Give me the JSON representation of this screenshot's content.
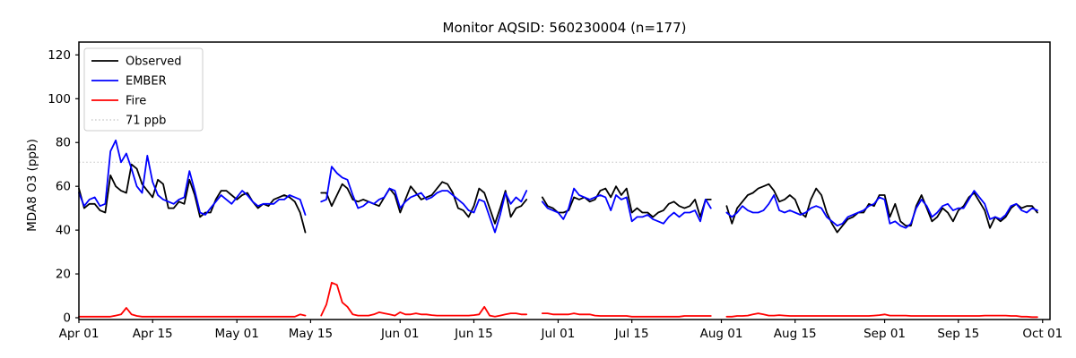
{
  "chart_data": {
    "type": "line",
    "title": "Monitor AQSID: 560230004 (n=177)",
    "ylabel": "MDA8 O3 (ppb)",
    "ylim": [
      -3,
      126
    ],
    "y_ticks": [
      0,
      20,
      40,
      60,
      80,
      100,
      120
    ],
    "x_tick_days": [
      0,
      14,
      30,
      44,
      61,
      75,
      91,
      105,
      122,
      136,
      153,
      167,
      183
    ],
    "x_tick_labels": [
      "Apr 01",
      "Apr 15",
      "May 01",
      "May 15",
      "Jun 01",
      "Jun 15",
      "Jul 01",
      "Jul 15",
      "Aug 01",
      "Aug 15",
      "Sep 01",
      "Sep 15",
      "Oct 01"
    ],
    "x_start_label": "Apr 01",
    "n_days_shown": 183,
    "grid": false,
    "legend_position": "top-left",
    "threshold": {
      "value": 71,
      "label": "71 ppb",
      "color": "#d3d3d3",
      "style": "dotted"
    },
    "series": [
      {
        "name": "Observed",
        "color": "#000000",
        "values": [
          59,
          50,
          52,
          52,
          49,
          48,
          65,
          60,
          58,
          57,
          70,
          68,
          61,
          58,
          55,
          63,
          61,
          50,
          50,
          53,
          52,
          63,
          56,
          46,
          48,
          48,
          54,
          58,
          58,
          56,
          54,
          56,
          57,
          53,
          50,
          52,
          51,
          54,
          55,
          56,
          55,
          53,
          48,
          39,
          null,
          null,
          57,
          57,
          51,
          56,
          61,
          59,
          54,
          53,
          54,
          53,
          52,
          51,
          55,
          59,
          56,
          48,
          54,
          60,
          57,
          54,
          55,
          56,
          59,
          62,
          61,
          57,
          50,
          49,
          46,
          51,
          59,
          57,
          50,
          43,
          50,
          58,
          46,
          50,
          51,
          54,
          null,
          null,
          55,
          51,
          50,
          48,
          48,
          49,
          55,
          54,
          55,
          53,
          54,
          58,
          59,
          55,
          60,
          56,
          59,
          48,
          50,
          48,
          48,
          46,
          48,
          49,
          52,
          53,
          51,
          50,
          51,
          54,
          46,
          54,
          54,
          null,
          null,
          51,
          43,
          50,
          53,
          56,
          57,
          59,
          60,
          61,
          58,
          53,
          54,
          56,
          54,
          48,
          46,
          54,
          59,
          56,
          48,
          43,
          39,
          42,
          45,
          46,
          48,
          48,
          52,
          51,
          56,
          56,
          46,
          52,
          44,
          42,
          42,
          51,
          56,
          50,
          44,
          46,
          50,
          48,
          44,
          49,
          51,
          55,
          57,
          53,
          49,
          41,
          46,
          44,
          46,
          50,
          52,
          50,
          51,
          51,
          48
        ]
      },
      {
        "name": "EMBER",
        "color": "#0000ff",
        "values": [
          57,
          51,
          54,
          55,
          51,
          52,
          76,
          81,
          71,
          75,
          68,
          60,
          57,
          74,
          62,
          56,
          54,
          53,
          52,
          54,
          55,
          67,
          58,
          48,
          47,
          50,
          53,
          56,
          54,
          52,
          55,
          58,
          56,
          53,
          51,
          52,
          52,
          52,
          54,
          54,
          56,
          55,
          54,
          47,
          null,
          null,
          53,
          54,
          69,
          66,
          64,
          63,
          56,
          50,
          51,
          53,
          52,
          54,
          55,
          59,
          58,
          50,
          53,
          55,
          56,
          57,
          54,
          55,
          57,
          58,
          58,
          56,
          54,
          52,
          49,
          48,
          54,
          53,
          46,
          39,
          47,
          57,
          52,
          55,
          53,
          58,
          null,
          null,
          53,
          50,
          49,
          48,
          45,
          50,
          59,
          56,
          55,
          54,
          55,
          56,
          55,
          49,
          56,
          54,
          55,
          44,
          46,
          46,
          47,
          45,
          44,
          43,
          46,
          48,
          46,
          48,
          48,
          49,
          44,
          54,
          50,
          null,
          null,
          48,
          46,
          48,
          51,
          49,
          48,
          48,
          49,
          52,
          56,
          49,
          48,
          49,
          48,
          47,
          48,
          50,
          51,
          50,
          46,
          44,
          42,
          43,
          46,
          47,
          48,
          49,
          51,
          52,
          55,
          54,
          43,
          44,
          42,
          41,
          43,
          50,
          54,
          51,
          46,
          48,
          51,
          52,
          49,
          50,
          50,
          54,
          58,
          55,
          52,
          45,
          46,
          45,
          47,
          51,
          52,
          49,
          48,
          50,
          49
        ]
      },
      {
        "name": "Fire",
        "color": "#ff0000",
        "values": [
          0.5,
          0.5,
          0.5,
          0.5,
          0.5,
          0.5,
          0.5,
          1,
          1.5,
          4.5,
          1.5,
          0.8,
          0.5,
          0.5,
          0.5,
          0.5,
          0.5,
          0.5,
          0.5,
          0.5,
          0.5,
          0.5,
          0.5,
          0.5,
          0.5,
          0.5,
          0.5,
          0.5,
          0.5,
          0.5,
          0.5,
          0.5,
          0.5,
          0.5,
          0.5,
          0.5,
          0.5,
          0.5,
          0.5,
          0.5,
          0.5,
          0.5,
          1.5,
          1,
          null,
          null,
          1,
          6,
          16,
          15,
          7,
          5,
          1.5,
          1,
          1,
          1,
          1.5,
          2.5,
          2,
          1.5,
          1,
          2.5,
          1.5,
          1.5,
          2,
          1.5,
          1.5,
          1.2,
          1,
          1,
          1,
          1,
          1,
          1,
          1,
          1.2,
          1.5,
          5,
          1,
          0.5,
          1,
          1.5,
          2,
          2,
          1.5,
          1.5,
          null,
          null,
          2,
          2,
          1.5,
          1.5,
          1.5,
          1.5,
          2,
          1.5,
          1.5,
          1.5,
          1,
          0.8,
          0.8,
          0.8,
          0.8,
          0.8,
          0.8,
          0.5,
          0.5,
          0.5,
          0.5,
          0.5,
          0.5,
          0.5,
          0.5,
          0.5,
          0.5,
          0.8,
          0.8,
          0.8,
          0.8,
          0.8,
          0.8,
          null,
          null,
          0.5,
          0.5,
          0.8,
          0.8,
          1,
          1.5,
          2,
          1.5,
          1,
          1,
          1.2,
          1,
          0.8,
          0.8,
          0.8,
          0.8,
          0.8,
          0.8,
          0.8,
          0.8,
          0.8,
          0.8,
          0.8,
          0.8,
          0.8,
          0.8,
          0.8,
          0.8,
          1,
          1.2,
          1.5,
          1,
          1,
          1,
          1,
          0.8,
          0.8,
          0.8,
          0.8,
          0.8,
          0.8,
          0.8,
          0.8,
          0.8,
          0.8,
          0.8,
          0.8,
          0.8,
          0.8,
          1,
          1,
          1,
          1,
          1,
          0.8,
          0.8,
          0.5,
          0.5,
          0.3,
          0.3
        ]
      }
    ],
    "colors": {
      "observed": "#000000",
      "ember": "#0000ff",
      "fire": "#ff0000",
      "threshold": "#d3d3d3",
      "spine": "#000000"
    }
  }
}
